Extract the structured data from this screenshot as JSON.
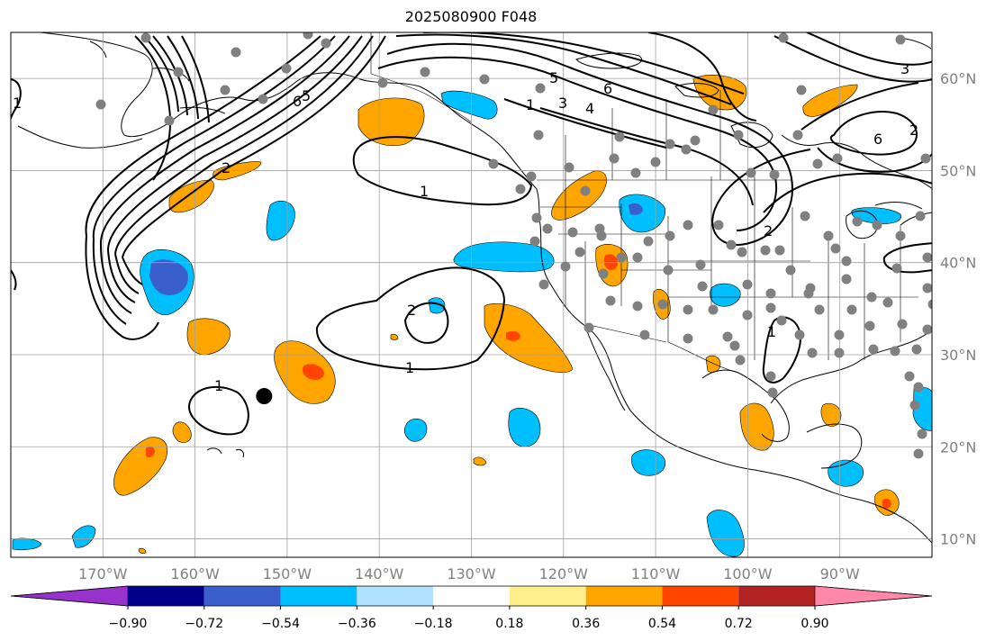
{
  "title": "2025080900 F048",
  "map": {
    "lon_range": [
      -180,
      -80
    ],
    "lat_range": [
      8,
      65
    ],
    "lon_ticks": [
      {
        "value": -170,
        "label": "170°W"
      },
      {
        "value": -160,
        "label": "160°W"
      },
      {
        "value": -150,
        "label": "150°W"
      },
      {
        "value": -140,
        "label": "140°W"
      },
      {
        "value": -130,
        "label": "130°W"
      },
      {
        "value": -120,
        "label": "120°W"
      },
      {
        "value": -110,
        "label": "110°W"
      },
      {
        "value": -100,
        "label": "100°W"
      },
      {
        "value": -90,
        "label": "90°W"
      }
    ],
    "lat_ticks": [
      {
        "value": 60,
        "label": "60°N"
      },
      {
        "value": 50,
        "label": "50°N"
      },
      {
        "value": 40,
        "label": "40°N"
      },
      {
        "value": 30,
        "label": "30°N"
      },
      {
        "value": 20,
        "label": "20°N"
      },
      {
        "value": 10,
        "label": "10°N"
      }
    ],
    "contour_labels": [
      "1",
      "2",
      "3",
      "4",
      "5",
      "6"
    ],
    "marker": {
      "lon": -152.5,
      "lat": 25.5,
      "color": "#000000"
    },
    "station_color": "#808080"
  },
  "colorbar": {
    "colors": [
      "#9932cc",
      "#00008b",
      "#3a5fcd",
      "#00bfff",
      "#b0e2ff",
      "#ffffff",
      "#fff08c",
      "#ffa500",
      "#ff4500",
      "#b22222",
      "#ff88aa"
    ],
    "boundaries": [
      "−0.90",
      "−0.72",
      "−0.54",
      "−0.36",
      "−0.18",
      "0.18",
      "0.36",
      "0.54",
      "0.72",
      "0.90"
    ]
  }
}
